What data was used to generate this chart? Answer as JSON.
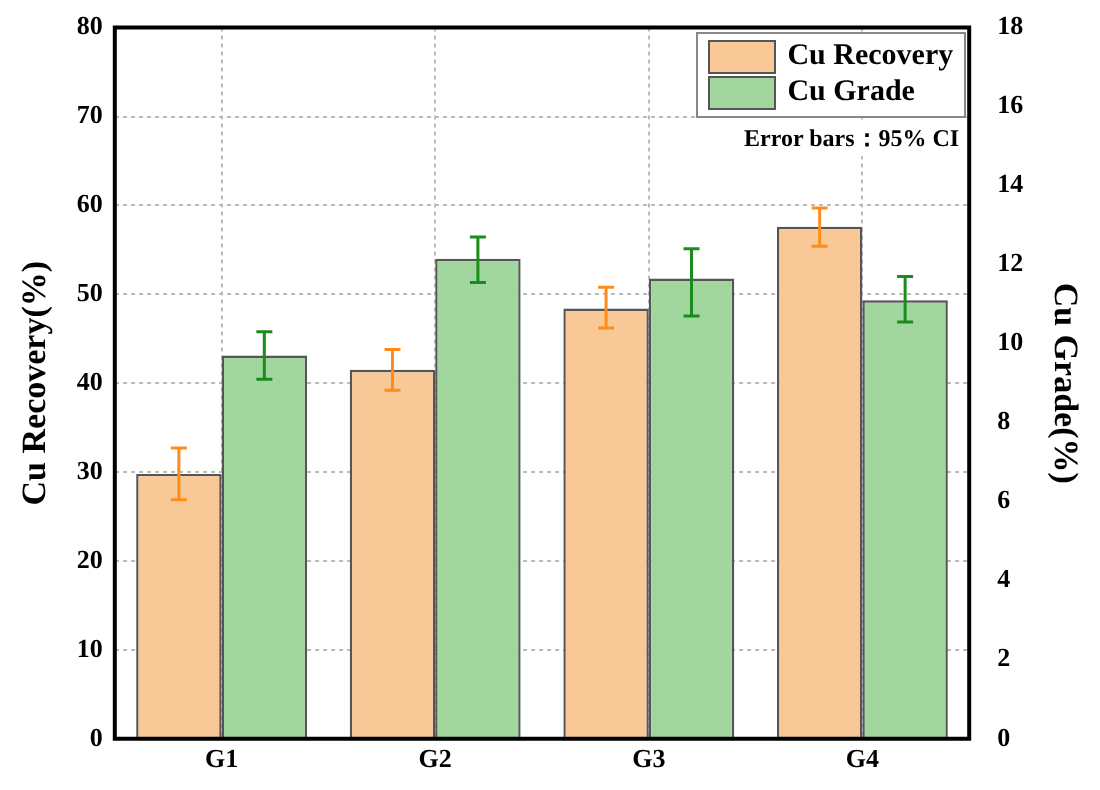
{
  "chart_data": {
    "type": "bar",
    "categories": [
      "G1",
      "G2",
      "G3",
      "G4"
    ],
    "ylabel": "Cu Recovery(%)",
    "y2label": "Cu Grade(%)",
    "series": [
      {
        "name": "Cu Recovery",
        "color": "#f9c897",
        "values": [
          29.8,
          41.5,
          48.4,
          57.6
        ],
        "errors": [
          [
            26.9,
            32.7
          ],
          [
            39.2,
            43.8
          ],
          [
            46.2,
            50.8
          ],
          [
            55.4,
            59.7
          ]
        ]
      },
      {
        "name": "Cu Grade",
        "color": "#a1d79f",
        "axis": "y2",
        "values": [
          9.7,
          12.15,
          11.65,
          11.1
        ],
        "errors": [
          [
            9.1,
            10.3
          ],
          [
            11.55,
            12.7
          ],
          [
            10.7,
            12.4
          ],
          [
            10.55,
            11.7
          ]
        ]
      }
    ],
    "ylim": [
      0,
      80
    ],
    "yticks": [
      0,
      10,
      20,
      30,
      40,
      50,
      60,
      70,
      80
    ],
    "y2lim": [
      0,
      18
    ],
    "y2ticks": [
      0,
      2,
      4,
      6,
      8,
      10,
      12,
      14,
      16,
      18
    ],
    "grid": true,
    "legend": "top right",
    "annotations": [
      "Error bars：95% CI"
    ]
  }
}
